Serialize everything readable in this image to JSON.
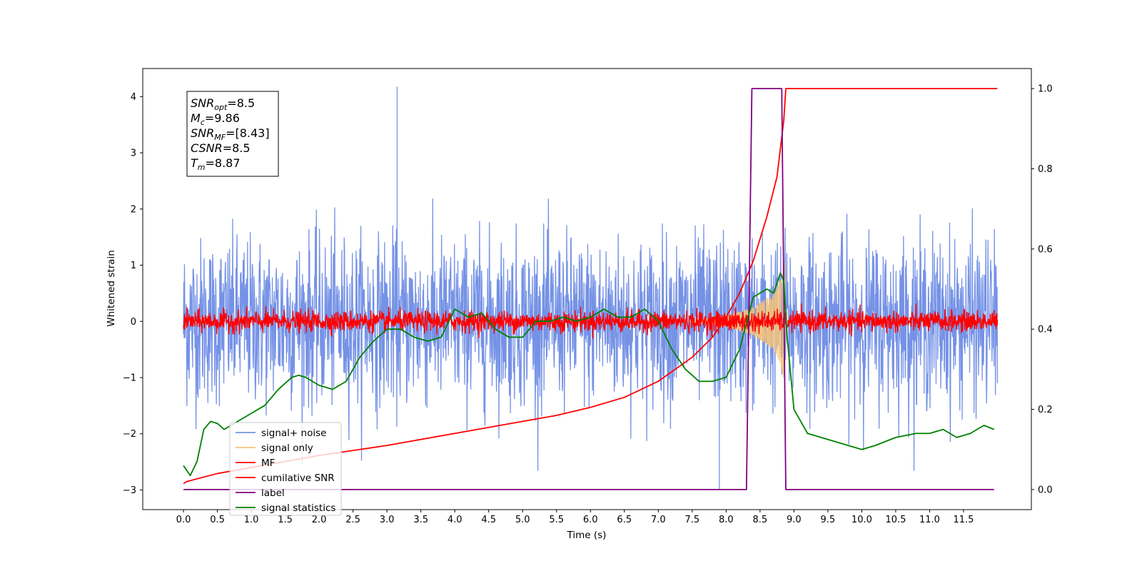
{
  "chart_data": {
    "type": "line",
    "title": "",
    "xlabel": "Time (s)",
    "ylabel": "Whitened strain",
    "xlim": [
      -0.6,
      12.5
    ],
    "ylim": [
      -3.35,
      4.5
    ],
    "y2lim": [
      -0.05,
      1.05
    ],
    "grid": false,
    "legend_position": "lower-left",
    "x_ticks": [
      "0.0",
      "0.5",
      "1.0",
      "1.5",
      "2.0",
      "2.5",
      "3.0",
      "3.5",
      "4.0",
      "4.5",
      "5.0",
      "5.5",
      "6.0",
      "6.5",
      "7.0",
      "7.5",
      "8.0",
      "8.5",
      "9.0",
      "9.5",
      "10.0",
      "10.5",
      "11.0",
      "11.5"
    ],
    "y_ticks": [
      "4",
      "3",
      "2",
      "1",
      "0",
      "−1",
      "−2",
      "−3"
    ],
    "y2_ticks": [
      "1.0",
      "0.8",
      "0.6",
      "0.4",
      "0.2",
      "0.0"
    ],
    "annotation": {
      "lines": [
        {
          "sym": "SNR",
          "sub": "opt",
          "text": "=8.5"
        },
        {
          "sym": "M",
          "sub": "c",
          "text": "=9.86"
        },
        {
          "sym": "SNR",
          "sub": "MF",
          "text": "=[8.43]"
        },
        {
          "sym": "CSNR",
          "sub": "",
          "text": "=8.5"
        },
        {
          "sym": "T",
          "sub": "m",
          "text": "=8.87"
        }
      ]
    },
    "series": [
      {
        "name": "signal+ noise",
        "color": "#7592e6",
        "axis": "left",
        "kind": "noise_band",
        "envelope_x": [
          0.0,
          12.0
        ],
        "envelope_low": [
          -1.9,
          -1.9
        ],
        "envelope_high": [
          1.9,
          1.9
        ],
        "max_peak": 4.18,
        "min_peak": -3.0
      },
      {
        "name": "signal only",
        "color": "#f5c278",
        "axis": "left",
        "kind": "chirp",
        "chirp_x": [
          7.4,
          8.0,
          8.4,
          8.7,
          8.8,
          8.86,
          8.88,
          9.0
        ],
        "chirp_amp": [
          0.0,
          0.1,
          0.25,
          0.5,
          0.75,
          1.1,
          0.0,
          0.0
        ]
      },
      {
        "name": "MF",
        "color": "#ff0000",
        "axis": "left",
        "kind": "noise_band",
        "envelope_x": [
          0.0,
          12.0
        ],
        "envelope_low": [
          -0.2,
          -0.2
        ],
        "envelope_high": [
          0.2,
          0.2
        ]
      },
      {
        "name": "cumilative SNR",
        "color": "#ff0000",
        "axis": "right",
        "kind": "line",
        "x": [
          0.0,
          0.05,
          0.5,
          1.0,
          2.0,
          3.0,
          4.0,
          5.0,
          5.5,
          6.0,
          6.5,
          7.0,
          7.5,
          7.8,
          8.0,
          8.2,
          8.4,
          8.6,
          8.75,
          8.85,
          8.88,
          12.0
        ],
        "y": [
          0.015,
          0.02,
          0.04,
          0.055,
          0.085,
          0.11,
          0.14,
          0.17,
          0.185,
          0.205,
          0.23,
          0.27,
          0.33,
          0.38,
          0.43,
          0.49,
          0.57,
          0.68,
          0.78,
          0.92,
          1.0,
          1.0
        ]
      },
      {
        "name": "label",
        "color": "#800080",
        "axis": "right",
        "kind": "line",
        "x": [
          0.0,
          8.3,
          8.38,
          8.82,
          8.88,
          11.95
        ],
        "y": [
          0.0,
          0.0,
          1.0,
          1.0,
          0.0,
          0.0
        ]
      },
      {
        "name": "signal statistics",
        "color": "#008000",
        "axis": "right",
        "kind": "line",
        "x": [
          0.0,
          0.1,
          0.2,
          0.3,
          0.4,
          0.5,
          0.6,
          0.8,
          1.0,
          1.2,
          1.4,
          1.6,
          1.7,
          1.8,
          2.0,
          2.2,
          2.4,
          2.6,
          2.8,
          3.0,
          3.2,
          3.4,
          3.6,
          3.8,
          4.0,
          4.2,
          4.4,
          4.6,
          4.8,
          5.0,
          5.2,
          5.4,
          5.6,
          5.8,
          6.0,
          6.2,
          6.4,
          6.6,
          6.8,
          7.0,
          7.2,
          7.4,
          7.6,
          7.8,
          8.0,
          8.2,
          8.4,
          8.6,
          8.7,
          8.8,
          8.85,
          8.9,
          9.0,
          9.2,
          9.4,
          9.6,
          9.8,
          10.0,
          10.2,
          10.5,
          10.8,
          11.0,
          11.2,
          11.4,
          11.6,
          11.8,
          11.95
        ],
        "y": [
          0.06,
          0.035,
          0.07,
          0.15,
          0.17,
          0.165,
          0.15,
          0.17,
          0.19,
          0.21,
          0.25,
          0.28,
          0.285,
          0.28,
          0.26,
          0.25,
          0.27,
          0.33,
          0.37,
          0.4,
          0.4,
          0.38,
          0.37,
          0.38,
          0.45,
          0.43,
          0.44,
          0.4,
          0.38,
          0.38,
          0.42,
          0.42,
          0.43,
          0.42,
          0.43,
          0.45,
          0.43,
          0.43,
          0.45,
          0.42,
          0.35,
          0.3,
          0.27,
          0.27,
          0.28,
          0.35,
          0.48,
          0.5,
          0.49,
          0.54,
          0.52,
          0.38,
          0.2,
          0.14,
          0.13,
          0.12,
          0.11,
          0.1,
          0.11,
          0.13,
          0.14,
          0.14,
          0.15,
          0.13,
          0.14,
          0.16,
          0.15
        ]
      }
    ]
  }
}
